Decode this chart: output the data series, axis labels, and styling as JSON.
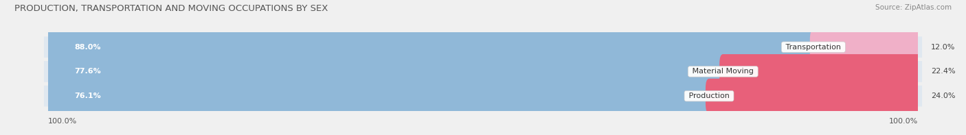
{
  "title": "PRODUCTION, TRANSPORTATION AND MOVING OCCUPATIONS BY SEX",
  "source": "Source: ZipAtlas.com",
  "categories": [
    "Transportation",
    "Material Moving",
    "Production"
  ],
  "male_values": [
    88.0,
    77.6,
    76.1
  ],
  "female_values": [
    12.0,
    22.4,
    24.0
  ],
  "male_color": "#90b8d8",
  "female_color_0": "#f0b0c8",
  "female_color_1": "#e8607a",
  "female_color_2": "#e8607a",
  "bar_bg_color": "#dce6f0",
  "title_fontsize": 9.5,
  "source_fontsize": 7.5,
  "bar_label_fontsize": 8,
  "category_fontsize": 8,
  "axis_label_fontsize": 8,
  "legend_fontsize": 8,
  "background_color": "#f0f0f0",
  "row_bg_color": "#e8e8e8"
}
